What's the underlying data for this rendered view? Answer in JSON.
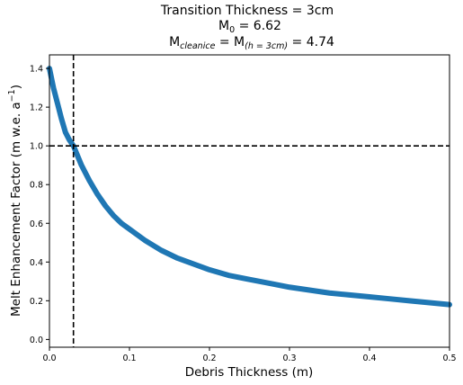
{
  "chart_data": {
    "type": "line",
    "title": {
      "line1": "Transition Thickness = 3cm",
      "line2_main": "M",
      "line2_sub": "0",
      "line2_rest": " = 6.62",
      "line3_a": "M",
      "line3_sub1": "cleanice",
      "line3_b": " = M",
      "line3_sub2": "(h = 3cm)",
      "line3_c": " = 4.74"
    },
    "xlabel": "Debris Thickness (m)",
    "ylabel_main": "Melt Enhancement Factor (m w.e. a",
    "ylabel_sup": "−1",
    "ylabel_end": ")",
    "xlim": [
      0,
      0.5
    ],
    "ylim": [
      -0.04,
      1.47
    ],
    "xticks": [
      "0.0",
      "0.1",
      "0.2",
      "0.3",
      "0.4",
      "0.5"
    ],
    "yticks": [
      "0.0",
      "0.2",
      "0.4",
      "0.6",
      "0.8",
      "1.0",
      "1.2",
      "1.4"
    ],
    "series": [
      {
        "color": "#1f77b4",
        "x": [
          0.0,
          0.005,
          0.01,
          0.015,
          0.02,
          0.025,
          0.03,
          0.04,
          0.05,
          0.06,
          0.07,
          0.08,
          0.09,
          0.1,
          0.12,
          0.14,
          0.16,
          0.18,
          0.2,
          0.225,
          0.25,
          0.275,
          0.3,
          0.325,
          0.35,
          0.375,
          0.4,
          0.425,
          0.45,
          0.475,
          0.5
        ],
        "y": [
          1.4,
          1.3,
          1.22,
          1.14,
          1.07,
          1.03,
          1.0,
          0.9,
          0.82,
          0.75,
          0.69,
          0.64,
          0.6,
          0.57,
          0.51,
          0.46,
          0.42,
          0.39,
          0.36,
          0.33,
          0.31,
          0.29,
          0.27,
          0.255,
          0.24,
          0.23,
          0.22,
          0.21,
          0.2,
          0.19,
          0.18
        ]
      }
    ],
    "reference_lines": {
      "vertical_x": 0.03,
      "horizontal_y": 1.0,
      "color": "#000000",
      "style": "dashed"
    },
    "grid": false,
    "legend": "none"
  }
}
